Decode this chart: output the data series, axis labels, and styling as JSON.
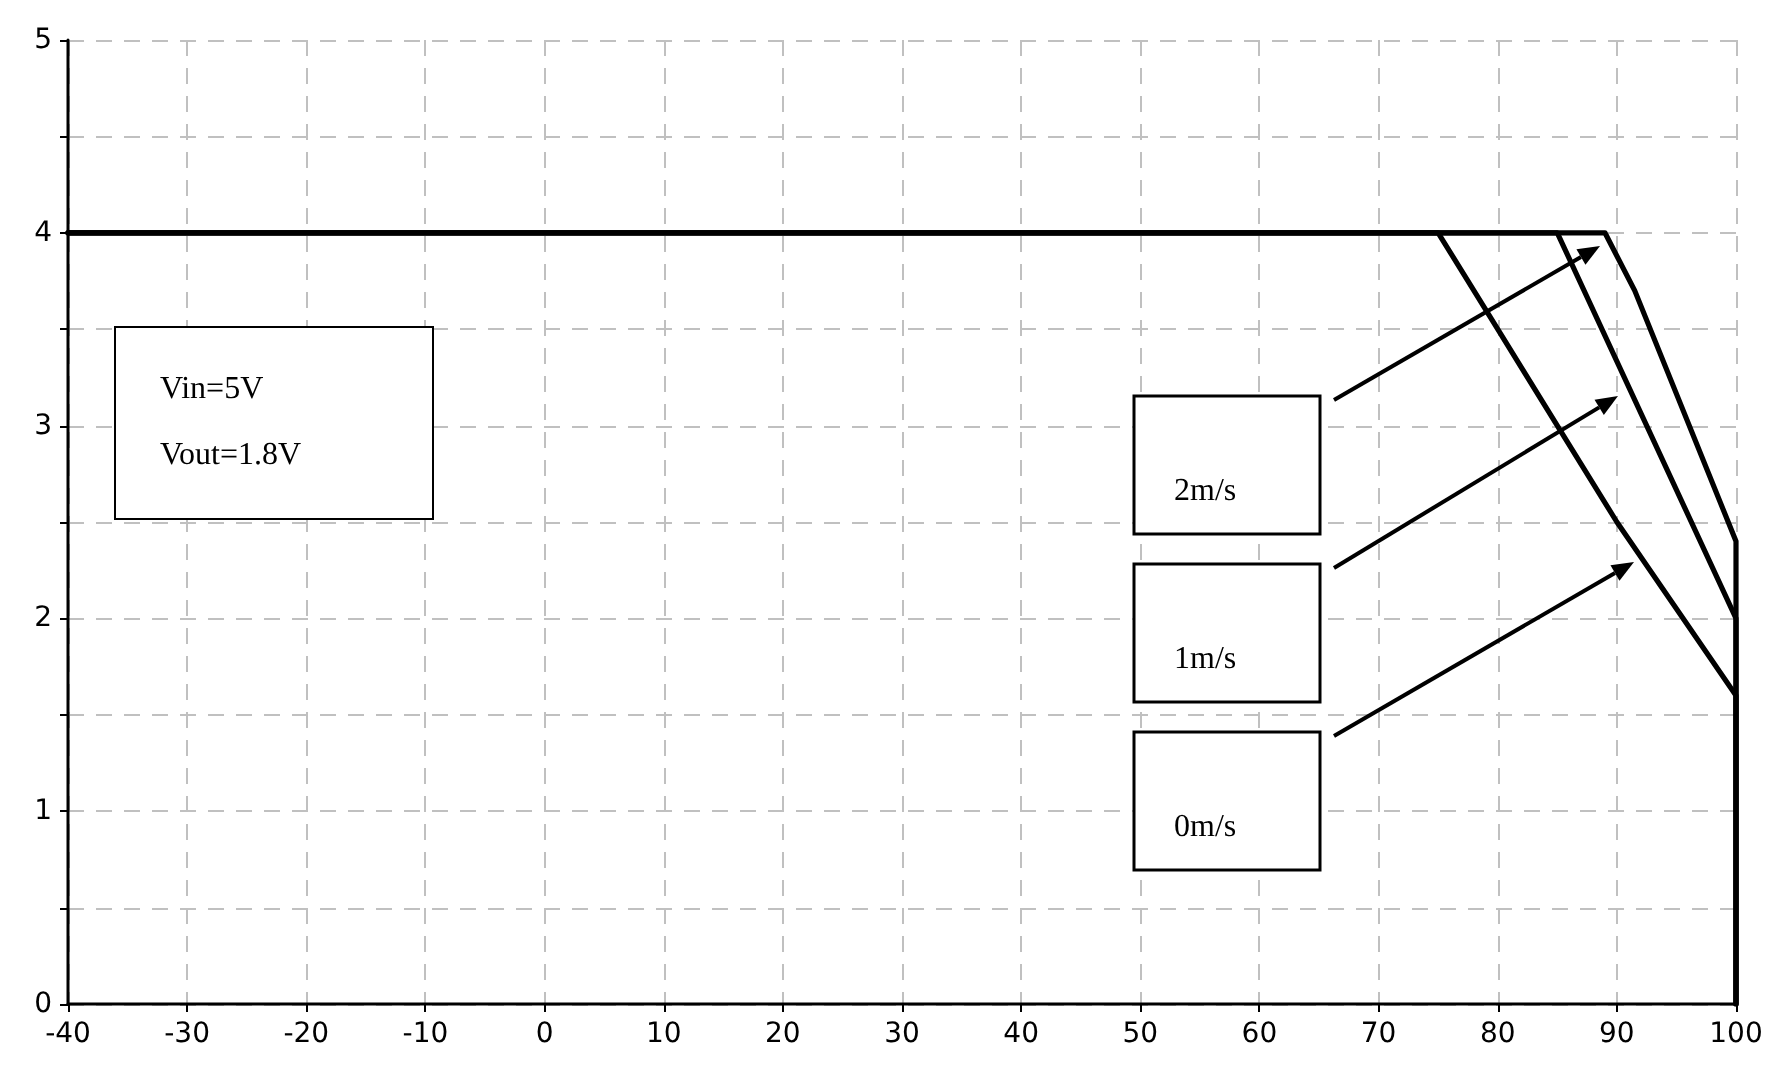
{
  "chart_data": {
    "type": "line",
    "series": [
      {
        "color": "#000000",
        "x": [
          -40,
          75,
          80,
          85,
          90,
          95,
          100,
          100
        ],
        "values": [
          4,
          4,
          3.5,
          3.0,
          2.5,
          2.05,
          1.6,
          0
        ]
      },
      {
        "color": "#000000",
        "x": [
          -40,
          85,
          100,
          100
        ],
        "values": [
          4,
          4,
          2.0,
          0
        ]
      },
      {
        "color": "#000000",
        "x": [
          -40,
          89,
          91.5,
          100,
          100
        ],
        "values": [
          4,
          4,
          3.7,
          2.4,
          0
        ]
      }
    ],
    "xlim": [
      -40,
      100
    ],
    "xticks": [
      -40,
      -30,
      -20,
      -10,
      0,
      10,
      20,
      30,
      40,
      50,
      60,
      70,
      80,
      90,
      100
    ],
    "ylim": [
      0,
      5
    ],
    "yticks": [
      0,
      {
        "value": 0.5,
        "label": null
      },
      1,
      {
        "value": 1.5,
        "label": null
      },
      2,
      {
        "value": 2.5,
        "label": null
      },
      3,
      {
        "value": 3.5,
        "label": null
      },
      4,
      {
        "value": 4.5,
        "label": null
      },
      5
    ],
    "grid": true,
    "marker": "none",
    "line_style": "solid",
    "annotations": [
      "Vin=5V",
      "Vout=1.8V",
      "2m/s",
      "1m/s",
      "0m/s"
    ]
  }
}
